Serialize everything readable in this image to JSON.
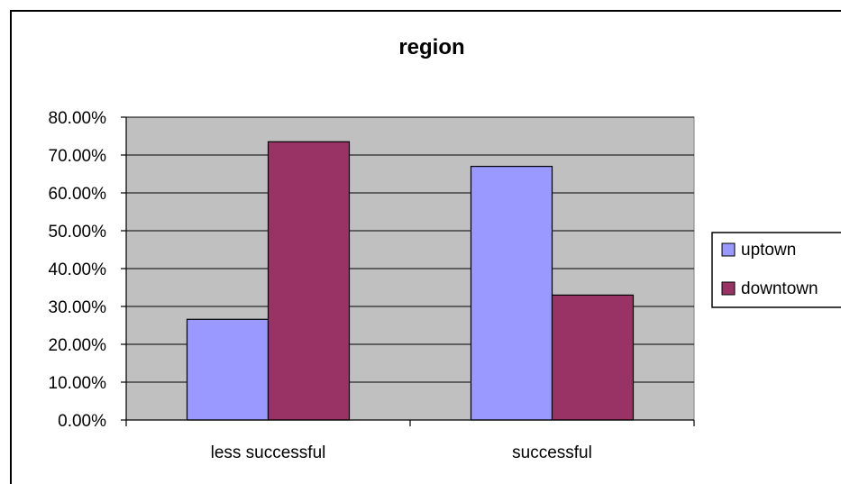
{
  "chart_data": {
    "type": "bar",
    "title": "region",
    "xlabel": "",
    "ylabel": "",
    "categories": [
      "less successful",
      "successful"
    ],
    "series": [
      {
        "name": "uptown",
        "values": [
          0.266,
          0.67
        ],
        "color": "#9999FF"
      },
      {
        "name": "downtown",
        "values": [
          0.735,
          0.33
        ],
        "color": "#993366"
      }
    ],
    "ylim": [
      0,
      0.8
    ],
    "yticks": [
      0,
      0.1,
      0.2,
      0.3,
      0.4,
      0.5,
      0.6,
      0.7,
      0.8
    ],
    "ytick_labels": [
      "0.00%",
      "10.00%",
      "20.00%",
      "30.00%",
      "40.00%",
      "50.00%",
      "60.00%",
      "70.00%",
      "80.00%"
    ],
    "plot_background": "#C0C0C0",
    "grid": true,
    "legend_position": "right"
  }
}
